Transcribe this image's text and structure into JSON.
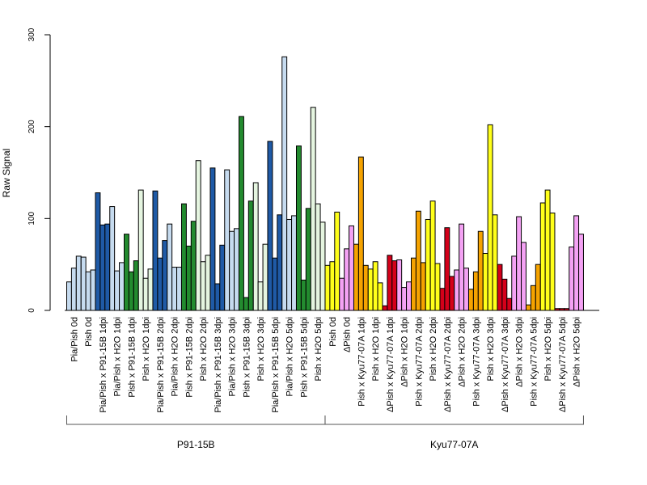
{
  "chart_data": {
    "type": "bar",
    "title": "",
    "ylabel": "Raw Signal",
    "xlabel": "",
    "ylim": [
      0,
      300
    ],
    "yticks": [
      0,
      100,
      200,
      300
    ],
    "grid": false,
    "categories": [
      "Pia/Pish 0d",
      "Pish 0d",
      "Pia/Pish x P91-15B 1dpi",
      "Pia/Pish x H2O 1dpi",
      "Pish x P91-15B 1dpi",
      "Pish x H2O 1dpi",
      "Pia/Pish x P91-15B 2dpi",
      "Pia/Pish x H2O 2dpi",
      "Pish x P91-15B 2dpi",
      "Pish x H2O 2dpi",
      "Pia/Pish x P91-15B 3dpi",
      "Pia/Pish x H2O 3dpi",
      "Pish x P91-15B 3dpi",
      "Pish x H2O 3dpi",
      "Pia/Pish x P91-15B 5dpi",
      "Pia/Pish x H2O 5dpi",
      "Pish x P91-15B 5dpi",
      "Pish x H2O 5dpi",
      "Pish 0d",
      "ΔPish 0d",
      "Pish x Kyu77-07A 1dpi",
      "Pish x H2O 1dpi",
      "ΔPish x Kyu77-07A 1dpi",
      "ΔPish x H2O 1dpi",
      "Pish x Kyu77-07A 2dpi",
      "Pish x H2O 2dpi",
      "ΔPish x Kyu77-07A 2dpi",
      "ΔPish x H2O 2dpi",
      "Pish x Kyu77-07A 3dpi",
      "Pish x H2O 3dpi",
      "ΔPish x Kyu77-07A 3dpi",
      "ΔPish x H2O 3dpi",
      "Pish x Kyu77-07A 5dpi",
      "Pish x H2O 5dpi",
      "ΔPish x Kyu77-07A 5dpi",
      "ΔPish x H2O 5dpi"
    ],
    "colors": [
      "#c6dbef",
      "#1f5aa6",
      "#238b2f",
      "#e5f5e0",
      "#ffff1a",
      "#f4a2f4",
      "#f5a300",
      "#d4001a"
    ],
    "bar_color_index": [
      0,
      0,
      1,
      0,
      2,
      3,
      1,
      0,
      2,
      3,
      1,
      0,
      2,
      3,
      1,
      0,
      2,
      3,
      4,
      5,
      6,
      4,
      7,
      5,
      6,
      4,
      7,
      5,
      6,
      4,
      7,
      5,
      6,
      4,
      7,
      5
    ],
    "values": [
      [
        31,
        46,
        59
      ],
      [
        58,
        42,
        44
      ],
      [
        128,
        93,
        94
      ],
      [
        113,
        43,
        52
      ],
      [
        83,
        42,
        54
      ],
      [
        131,
        35,
        45
      ],
      [
        130,
        57,
        76
      ],
      [
        94,
        47,
        47
      ],
      [
        116,
        70,
        97
      ],
      [
        163,
        53,
        60
      ],
      [
        155,
        29,
        71
      ],
      [
        153,
        86,
        89
      ],
      [
        211,
        14,
        119
      ],
      [
        139,
        31,
        72
      ],
      [
        184,
        57,
        104
      ],
      [
        276,
        99,
        103
      ],
      [
        179,
        33,
        111
      ],
      [
        221,
        116,
        96
      ],
      [
        49,
        53,
        107
      ],
      [
        35,
        67,
        92
      ],
      [
        72,
        167,
        49
      ],
      [
        45,
        53,
        30
      ],
      [
        5,
        60,
        54
      ],
      [
        55,
        25,
        31
      ],
      [
        57,
        108,
        52
      ],
      [
        99,
        119,
        51
      ],
      [
        24,
        90,
        37
      ],
      [
        44,
        94,
        46
      ],
      [
        23,
        42,
        86
      ],
      [
        62,
        202,
        104
      ],
      [
        50,
        34,
        13
      ],
      [
        59,
        102,
        74
      ],
      [
        6,
        27,
        50
      ],
      [
        117,
        131,
        106
      ],
      [
        2,
        2,
        2
      ],
      [
        69,
        103,
        83
      ]
    ],
    "groups": [
      {
        "label": "P91-15B",
        "from": 0,
        "to": 17
      },
      {
        "label": "Kyu77-07A",
        "from": 18,
        "to": 35
      }
    ],
    "legend": "none"
  }
}
